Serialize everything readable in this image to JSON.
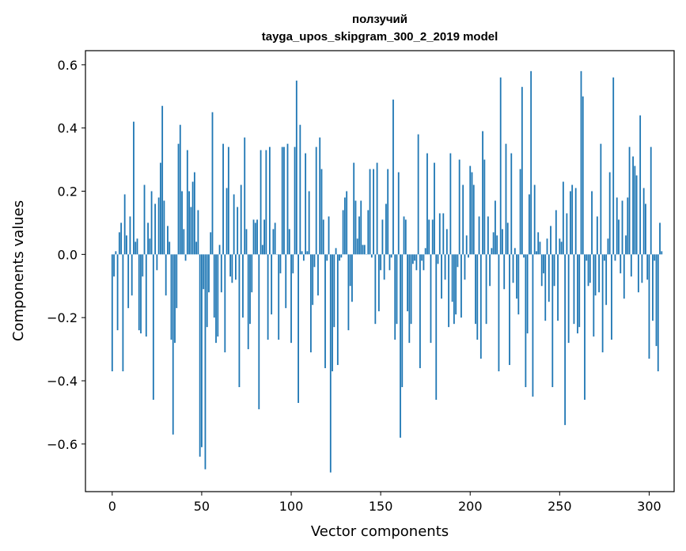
{
  "chart_data": {
    "type": "bar",
    "title_line1": "ползучий",
    "title_line2": "tayga_upos_skipgram_300_2_2019 model",
    "xlabel": "Vector components",
    "ylabel": "Components values",
    "xlim": [
      -14.95,
      313.95
    ],
    "ylim": [
      -0.7507,
      0.6447
    ],
    "xticks": [
      0,
      50,
      100,
      150,
      200,
      250,
      300
    ],
    "xtick_labels": [
      "0",
      "50",
      "100",
      "150",
      "200",
      "250",
      "300"
    ],
    "yticks": [
      -0.6,
      -0.4,
      -0.2,
      0.0,
      0.2,
      0.4,
      0.6
    ],
    "ytick_labels": [
      "−0.6",
      "−0.4",
      "−0.2",
      "0.0",
      "0.2",
      "0.4",
      "0.6"
    ],
    "bar_color": "#1f77b4",
    "values": [
      -0.37,
      -0.07,
      0.01,
      -0.24,
      0.07,
      0.1,
      -0.37,
      0.19,
      0.06,
      -0.17,
      0.12,
      -0.13,
      0.42,
      0.04,
      0.05,
      -0.24,
      -0.25,
      -0.07,
      0.22,
      -0.26,
      0.1,
      0.05,
      0.2,
      -0.46,
      0.16,
      -0.05,
      0.18,
      0.29,
      0.47,
      0.17,
      -0.13,
      0.09,
      0.04,
      -0.27,
      -0.57,
      -0.28,
      -0.17,
      0.35,
      0.41,
      0.2,
      0.08,
      -0.02,
      0.33,
      0.2,
      0.15,
      0.23,
      0.26,
      0.04,
      0.14,
      -0.64,
      -0.61,
      -0.11,
      -0.68,
      -0.23,
      -0.12,
      0.07,
      0.45,
      -0.2,
      -0.28,
      -0.26,
      0.03,
      -0.12,
      0.35,
      -0.31,
      0.21,
      0.34,
      -0.07,
      -0.09,
      0.19,
      -0.08,
      0.15,
      -0.42,
      0.22,
      -0.2,
      0.37,
      0.08,
      -0.3,
      -0.22,
      -0.12,
      0.11,
      0.1,
      0.11,
      -0.49,
      0.33,
      0.03,
      0.11,
      0.33,
      -0.27,
      0.34,
      -0.19,
      0.08,
      0.1,
      0.0,
      -0.27,
      -0.06,
      0.34,
      0.34,
      -0.17,
      0.35,
      0.08,
      -0.28,
      -0.06,
      0.34,
      0.55,
      -0.47,
      0.41,
      0.01,
      -0.02,
      0.32,
      0.01,
      0.2,
      -0.31,
      -0.16,
      -0.04,
      0.34,
      -0.13,
      0.37,
      0.27,
      0.11,
      -0.36,
      -0.02,
      0.12,
      -0.69,
      -0.37,
      -0.23,
      0.02,
      -0.35,
      -0.02,
      -0.01,
      0.14,
      0.18,
      0.2,
      -0.24,
      -0.1,
      -0.15,
      0.29,
      0.17,
      0.05,
      0.12,
      0.17,
      0.03,
      0.03,
      0.0,
      0.14,
      0.27,
      -0.01,
      0.27,
      -0.22,
      0.29,
      -0.18,
      -0.05,
      0.11,
      -0.08,
      0.16,
      0.27,
      -0.05,
      -0.01,
      0.49,
      -0.27,
      -0.22,
      0.26,
      -0.58,
      -0.42,
      0.12,
      0.11,
      -0.18,
      -0.28,
      -0.22,
      -0.03,
      -0.02,
      -0.05,
      0.38,
      -0.36,
      -0.02,
      -0.05,
      0.02,
      0.32,
      0.11,
      -0.28,
      0.11,
      0.29,
      -0.46,
      -0.03,
      0.13,
      -0.14,
      0.13,
      -0.08,
      0.08,
      -0.23,
      0.32,
      -0.15,
      -0.22,
      -0.19,
      -0.04,
      0.3,
      -0.2,
      0.22,
      -0.08,
      0.06,
      -0.01,
      0.28,
      0.26,
      0.22,
      -0.22,
      -0.27,
      0.12,
      -0.33,
      0.39,
      0.3,
      -0.22,
      0.12,
      -0.1,
      0.02,
      0.07,
      0.17,
      0.06,
      -0.37,
      0.56,
      0.08,
      -0.11,
      0.35,
      0.1,
      -0.35,
      0.32,
      -0.09,
      0.02,
      -0.14,
      -0.19,
      0.27,
      0.53,
      -0.01,
      -0.42,
      -0.25,
      0.19,
      0.58,
      -0.45,
      0.22,
      0.01,
      0.07,
      0.04,
      -0.1,
      -0.06,
      -0.21,
      0.05,
      -0.15,
      0.09,
      -0.42,
      -0.1,
      0.14,
      -0.21,
      0.05,
      0.04,
      0.23,
      -0.54,
      0.13,
      -0.28,
      0.2,
      0.22,
      -0.22,
      0.21,
      -0.25,
      -0.23,
      0.58,
      0.5,
      -0.46,
      -0.02,
      -0.1,
      -0.09,
      0.2,
      -0.26,
      -0.13,
      0.12,
      -0.12,
      0.35,
      -0.31,
      -0.02,
      -0.16,
      0.05,
      0.26,
      -0.27,
      0.56,
      -0.02,
      0.18,
      0.11,
      -0.06,
      0.17,
      -0.14,
      0.06,
      0.18,
      0.34,
      -0.07,
      0.31,
      0.28,
      0.25,
      -0.12,
      0.44,
      -0.09,
      0.21,
      0.16,
      -0.08,
      -0.33,
      0.34,
      -0.21,
      -0.02,
      -0.29,
      -0.37,
      0.1,
      0.01
    ]
  }
}
